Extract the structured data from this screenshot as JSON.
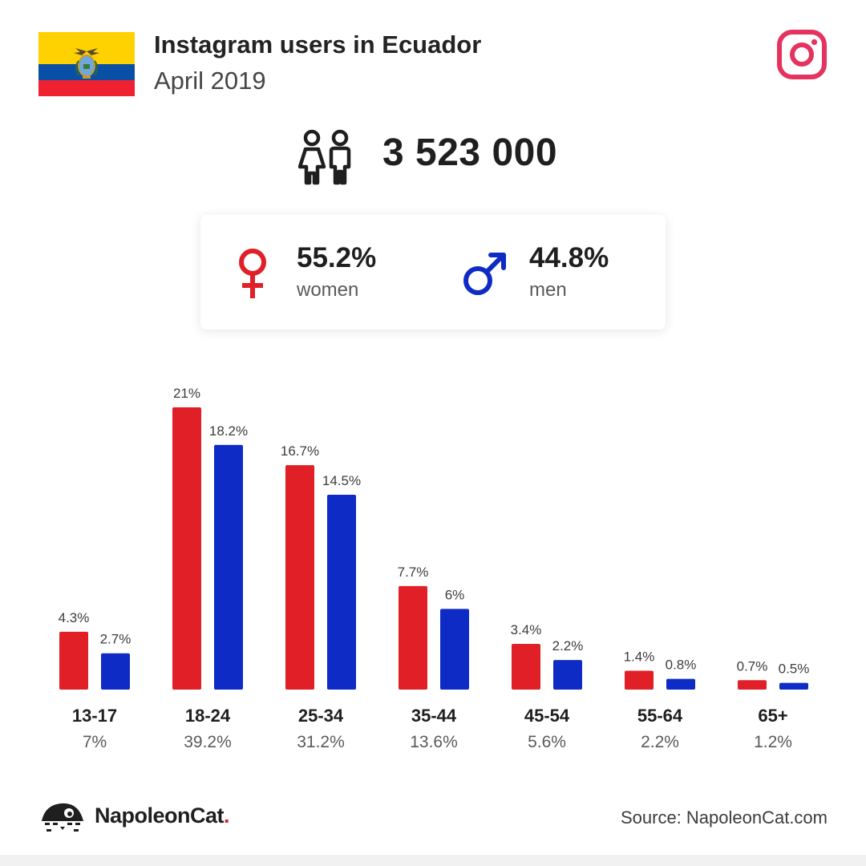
{
  "header": {
    "title": "Instagram users in Ecuador",
    "subtitle": "April 2019"
  },
  "total_users": "3 523 000",
  "gender": {
    "women": {
      "percent": "55.2%",
      "label": "women"
    },
    "men": {
      "percent": "44.8%",
      "label": "men"
    }
  },
  "colors": {
    "women": "#e01f26",
    "men": "#0f2bc5",
    "instagram": "#e4335f",
    "flag_yellow": "#ffd100",
    "flag_blue": "#0a4fa6",
    "flag_red": "#ef2131"
  },
  "icons": {
    "flag": "ecuador-flag-icon",
    "brand": "instagram-icon",
    "users": "people-icon",
    "women": "female-symbol-icon",
    "men": "male-symbol-icon",
    "logo": "napoleoncat-logo-icon"
  },
  "chart_data": {
    "type": "bar",
    "categories": [
      "13-17",
      "18-24",
      "25-34",
      "35-44",
      "45-54",
      "55-64",
      "65+"
    ],
    "category_totals": [
      "7%",
      "39.2%",
      "31.2%",
      "13.6%",
      "5.6%",
      "2.2%",
      "1.2%"
    ],
    "series": [
      {
        "name": "women",
        "values": [
          4.3,
          21,
          16.7,
          7.7,
          3.4,
          1.4,
          0.7
        ],
        "labels": [
          "4.3%",
          "21%",
          "16.7%",
          "7.7%",
          "3.4%",
          "1.4%",
          "0.7%"
        ]
      },
      {
        "name": "men",
        "values": [
          2.7,
          18.2,
          14.5,
          6,
          2.2,
          0.8,
          0.5
        ],
        "labels": [
          "2.7%",
          "18.2%",
          "14.5%",
          "6%",
          "2.2%",
          "0.8%",
          "0.5%"
        ]
      }
    ],
    "ylim": [
      0,
      21
    ],
    "unit": "%",
    "grid": false,
    "legend": "none"
  },
  "footer": {
    "brand_name": "NapoleonCat",
    "brand_dot": ".",
    "source": "Source: NapoleonCat.com"
  }
}
